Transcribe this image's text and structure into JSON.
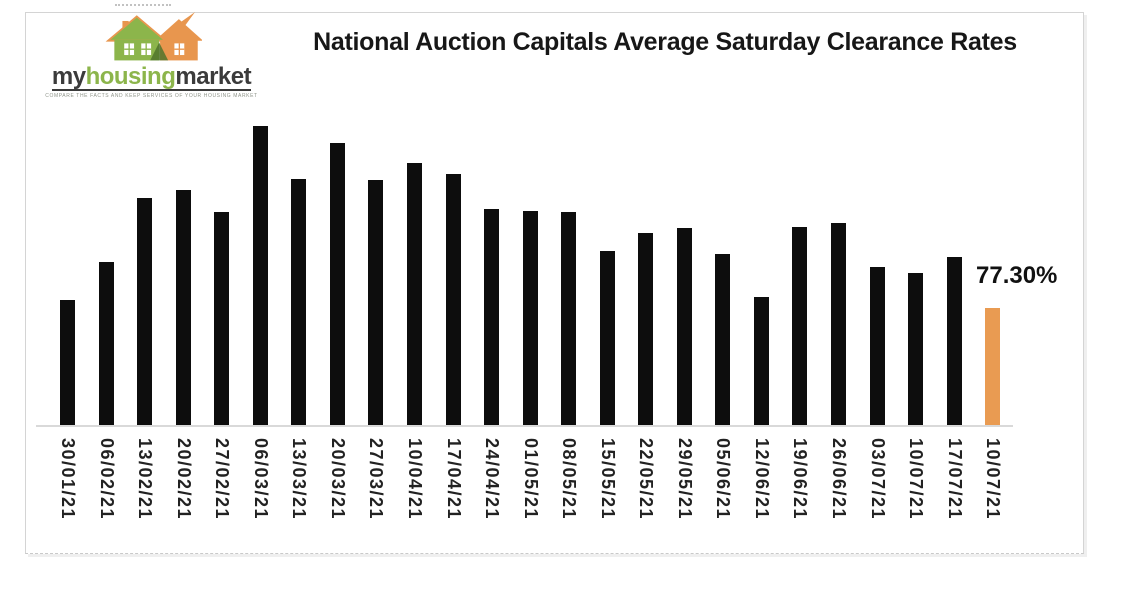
{
  "logo": {
    "brand_my": "my",
    "brand_housing": "housing",
    "brand_market": "market",
    "tagline": "COMPARE THE FACTS AND KEEP SERVICES OF YOUR HOUSING MARKET",
    "green": "#8cb54b",
    "orange": "#e8964e"
  },
  "chart_data": {
    "type": "bar",
    "title": "National Auction Capitals Average Saturday Clearance Rates",
    "xlabel": "",
    "ylabel": "",
    "categories": [
      "30/01/21",
      "06/02/21",
      "13/02/21",
      "20/02/21",
      "27/02/21",
      "06/03/21",
      "13/03/21",
      "20/03/21",
      "27/03/21",
      "10/04/21",
      "17/04/21",
      "24/04/21",
      "01/05/21",
      "08/05/21",
      "15/05/21",
      "22/05/21",
      "29/05/21",
      "05/06/21",
      "12/06/21",
      "19/06/21",
      "26/06/21",
      "03/07/21",
      "10/07/21",
      "17/07/21",
      "10/07/21"
    ],
    "values": [
      77.8,
      80.2,
      84.2,
      84.7,
      83.3,
      88.7,
      85.4,
      87.6,
      85.3,
      86.4,
      85.7,
      83.5,
      83.4,
      83.3,
      80.9,
      82.0,
      82.3,
      80.7,
      78.0,
      82.4,
      82.6,
      79.9,
      79.5,
      80.5,
      77.3
    ],
    "unit": "%",
    "annotation": "77.30%",
    "highlight_index": 24,
    "bar_color": "#0d0d0d",
    "highlight_color": "#e99b52",
    "ylim": [
      70,
      90
    ],
    "y_axis_visible": false,
    "grid": false,
    "legend": false,
    "x_label_rotation_deg": 90,
    "values_note": "y-axis is hidden in source; values estimated from bar heights anchored to labeled 77.30% final bar"
  }
}
